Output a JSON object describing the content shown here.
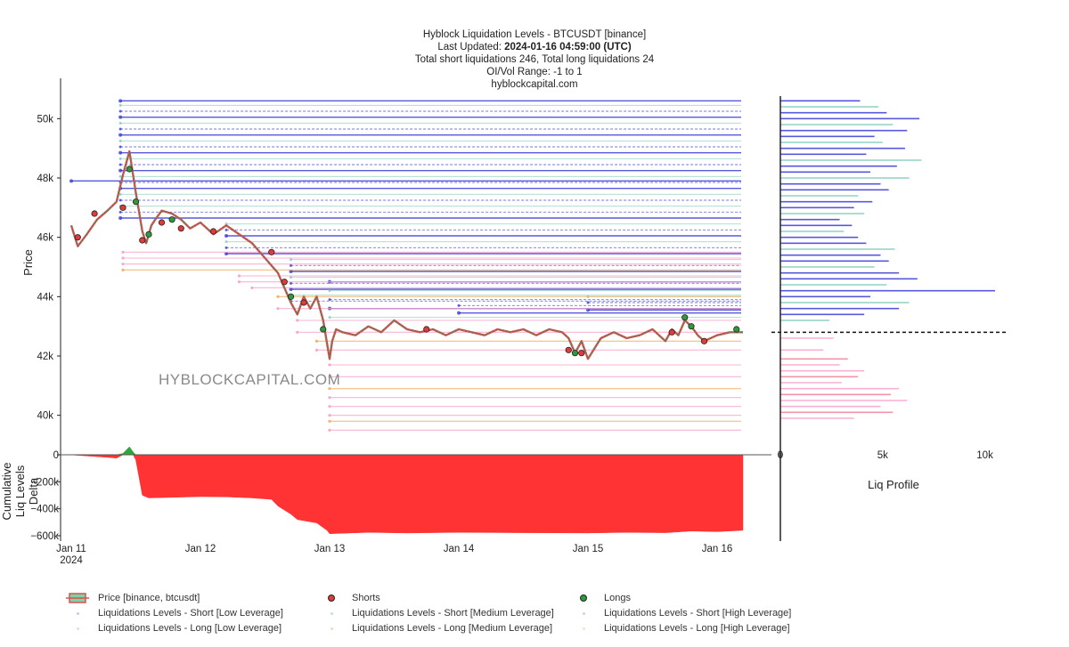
{
  "header": {
    "line1": "Hyblock Liquidation Levels - BTCUSDT [binance]",
    "updated_prefix": "Last Updated: ",
    "updated_value": "2024-01-16 04:59:00 (UTC)",
    "line3": "Total short liquidations 246, Total long liquidations 24",
    "line4": "OI/Vol Range: -1 to 1",
    "line5": "hyblockcapital.com"
  },
  "watermark": "HYBLOCKCAPITAL.COM",
  "colors": {
    "short_level": "#3b3bd6",
    "long_level": "#f7a8cf",
    "medium_level": "#7fc9b9",
    "price_up": "#2e8b57",
    "price_down": "#d9534f",
    "shorts_marker": "#e03a3a",
    "longs_marker": "#2e9a3e",
    "delta_negative": "#ff3333",
    "delta_positive": "#2ea53e",
    "current_price_line": "#111111"
  },
  "chart_data": [
    {
      "id": "price-panel",
      "type": "line",
      "title": "Hyblock Liquidation Levels - BTCUSDT [binance]",
      "ylabel": "Price",
      "ylim": [
        39000,
        51300
      ],
      "yticks": [
        40000,
        42000,
        44000,
        46000,
        48000,
        50000
      ],
      "ytick_labels": [
        "40k",
        "42k",
        "44k",
        "46k",
        "48k",
        "50k"
      ],
      "xlim": [
        0,
        5.24
      ],
      "xticks": [
        0,
        1,
        2,
        3,
        4,
        5
      ],
      "xtick_labels": [
        "Jan 11\n2024",
        "Jan 12",
        "Jan 13",
        "Jan 14",
        "Jan 15",
        "Jan 16"
      ],
      "price_series": {
        "name": "Price [binance, btcusdt]",
        "t": [
          0.0,
          0.05,
          0.12,
          0.2,
          0.28,
          0.35,
          0.4,
          0.45,
          0.5,
          0.55,
          0.58,
          0.62,
          0.65,
          0.7,
          0.78,
          0.85,
          0.92,
          1.0,
          1.1,
          1.2,
          1.3,
          1.4,
          1.5,
          1.6,
          1.7,
          1.75,
          1.8,
          1.85,
          1.9,
          1.95,
          2.0,
          2.02,
          2.05,
          2.1,
          2.2,
          2.3,
          2.4,
          2.5,
          2.6,
          2.7,
          2.8,
          2.9,
          3.0,
          3.1,
          3.2,
          3.3,
          3.4,
          3.5,
          3.6,
          3.7,
          3.8,
          3.85,
          3.9,
          3.95,
          4.0,
          4.1,
          4.2,
          4.3,
          4.4,
          4.5,
          4.6,
          4.65,
          4.7,
          4.75,
          4.8,
          4.85,
          4.9,
          5.0,
          5.1,
          5.2
        ],
        "price": [
          46400,
          45700,
          46100,
          46600,
          46900,
          47200,
          48100,
          48900,
          47500,
          46200,
          45800,
          46400,
          46600,
          46900,
          46800,
          46600,
          46300,
          46500,
          46100,
          46400,
          46100,
          45800,
          45300,
          44800,
          43800,
          43400,
          44000,
          43600,
          44000,
          43200,
          41900,
          42500,
          42900,
          42800,
          42700,
          43000,
          42800,
          43200,
          42900,
          42800,
          42900,
          42700,
          42900,
          42800,
          42700,
          42900,
          42800,
          42900,
          42700,
          42900,
          42800,
          42600,
          42100,
          42500,
          41900,
          42600,
          42800,
          42600,
          42700,
          42900,
          42500,
          42900,
          42700,
          43200,
          43000,
          42700,
          42500,
          42700,
          42800,
          42800
        ]
      },
      "shorts_markers": {
        "name": "Shorts",
        "t": [
          0.05,
          0.18,
          0.4,
          0.55,
          0.7,
          0.85,
          1.1,
          1.55,
          1.65,
          1.8,
          2.75,
          3.85,
          3.95,
          4.65,
          4.9
        ],
        "price": [
          46000,
          46800,
          47000,
          45900,
          46500,
          46300,
          46200,
          45500,
          44500,
          43800,
          42900,
          42200,
          42100,
          42800,
          42500
        ]
      },
      "longs_markers": {
        "name": "Longs",
        "t": [
          0.45,
          0.5,
          0.6,
          0.78,
          1.7,
          1.95,
          3.9,
          4.75,
          4.8,
          5.15
        ],
        "price": [
          48300,
          47200,
          46100,
          46600,
          44000,
          42900,
          42100,
          43300,
          43000,
          42900
        ]
      },
      "short_levels": {
        "name": "Liquidations Levels - Short [Low/Medium/High Leverage]",
        "start_t": [
          0.38,
          0.38,
          0.38,
          0.38,
          0.38,
          0.38,
          0.38,
          0.38,
          0.38,
          0.38,
          0.38,
          0.38,
          0.38,
          0.38,
          0.38,
          0.38,
          0.38,
          0.38,
          0.0,
          0.38,
          0.38,
          0.38,
          1.2,
          1.2,
          1.2,
          1.2,
          1.2,
          1.2,
          1.7,
          1.7,
          1.7,
          1.7,
          1.7,
          1.7,
          1.7,
          1.7,
          2.0,
          2.0,
          2.0,
          2.0,
          2.0,
          3.0,
          3.0,
          4.0,
          4.0,
          4.0
        ],
        "price": [
          50600,
          50450,
          50250,
          50050,
          49850,
          49650,
          49450,
          49250,
          49050,
          48850,
          48650,
          48450,
          48250,
          48050,
          47850,
          47650,
          47450,
          47250,
          47900,
          47050,
          46850,
          46650,
          46450,
          46250,
          46050,
          45850,
          45650,
          45450,
          45250,
          45050,
          44850,
          44650,
          44450,
          44250,
          44050,
          43850,
          44500,
          44200,
          43900,
          43600,
          43300,
          43700,
          43450,
          44000,
          43800,
          43550
        ]
      },
      "long_levels": {
        "name": "Liquidations Levels - Long [Low/Medium/High Leverage]",
        "start_t": [
          0.4,
          0.4,
          0.4,
          0.4,
          1.3,
          1.3,
          1.4,
          1.6,
          1.6,
          1.75,
          1.75,
          1.9,
          1.9,
          2.0,
          2.0,
          2.0,
          2.0,
          2.0,
          2.0,
          2.0,
          2.0
        ],
        "price": [
          45500,
          45300,
          45100,
          44900,
          44700,
          44500,
          44300,
          44000,
          43600,
          43200,
          42800,
          42500,
          42200,
          41700,
          41300,
          40900,
          40600,
          40300,
          40000,
          39800,
          39500
        ]
      },
      "current_price": 42800,
      "watermark": "HYBLOCKCAPITAL.COM"
    },
    {
      "id": "delta-panel",
      "type": "area",
      "ylabel": "Cumulative Liq Levels Delta",
      "ylim": [
        -620000,
        40000
      ],
      "yticks": [
        0,
        -200000,
        -400000,
        -600000
      ],
      "ytick_labels": [
        "0",
        "−200k",
        "−400k",
        "−600k"
      ],
      "t": [
        0.0,
        0.3,
        0.35,
        0.4,
        0.45,
        0.48,
        0.5,
        0.55,
        0.6,
        0.8,
        1.0,
        1.2,
        1.4,
        1.55,
        1.6,
        1.7,
        1.75,
        1.9,
        1.98,
        2.0,
        2.3,
        2.6,
        3.0,
        3.5,
        4.0,
        4.3,
        4.6,
        4.8,
        5.0,
        5.2
      ],
      "delta": [
        0,
        -20000,
        -25000,
        10000,
        60000,
        20000,
        -40000,
        -300000,
        -320000,
        -315000,
        -310000,
        -312000,
        -320000,
        -330000,
        -380000,
        -440000,
        -480000,
        -505000,
        -560000,
        -585000,
        -575000,
        -580000,
        -575000,
        -578000,
        -580000,
        -575000,
        -578000,
        -565000,
        -570000,
        -560000
      ]
    },
    {
      "id": "liq-profile",
      "type": "bar",
      "title": "Liq Profile",
      "xlim": [
        0,
        11500
      ],
      "xticks": [
        0,
        5000,
        10000
      ],
      "xtick_labels": [
        "0",
        "5k",
        "10k"
      ],
      "shorts": {
        "price": [
          50600,
          50400,
          50200,
          50000,
          49800,
          49600,
          49400,
          49200,
          49000,
          48800,
          48600,
          48400,
          48200,
          48000,
          47800,
          47600,
          47400,
          47200,
          47000,
          46800,
          46600,
          46400,
          46200,
          46000,
          45800,
          45600,
          45400,
          45200,
          45000,
          44800,
          44600,
          44400,
          44200,
          44000,
          43800,
          43600,
          43400,
          43200
        ],
        "value": [
          3900,
          4800,
          5200,
          6800,
          5500,
          6200,
          4600,
          5000,
          6100,
          4200,
          6900,
          5700,
          4400,
          6300,
          4900,
          5300,
          3800,
          4500,
          3600,
          4100,
          2900,
          3500,
          3100,
          3800,
          4200,
          5600,
          4900,
          5300,
          4600,
          5800,
          6700,
          5200,
          10500,
          4400,
          6300,
          5800,
          4100,
          2400
        ]
      },
      "longs": {
        "price": [
          42600,
          42200,
          41900,
          41700,
          41500,
          41300,
          41100,
          40900,
          40700,
          40500,
          40300,
          40100,
          39900
        ],
        "value": [
          2600,
          2100,
          3300,
          2900,
          4100,
          3800,
          3000,
          5800,
          5400,
          6200,
          4900,
          5500,
          3600
        ]
      }
    }
  ],
  "legend": {
    "items": [
      {
        "label": "Price [binance, btcusdt]"
      },
      {
        "label": "Shorts"
      },
      {
        "label": "Longs"
      },
      {
        "label": "Liquidations Levels - Short [Low Leverage]"
      },
      {
        "label": "Liquidations Levels - Short [Medium Leverage]"
      },
      {
        "label": "Liquidations Levels - Short [High Leverage]"
      },
      {
        "label": "Liquidations Levels - Long [Low Leverage]"
      },
      {
        "label": "Liquidations Levels - Long [Medium Leverage]"
      },
      {
        "label": "Liquidations Levels - Long [High Leverage]"
      }
    ]
  }
}
